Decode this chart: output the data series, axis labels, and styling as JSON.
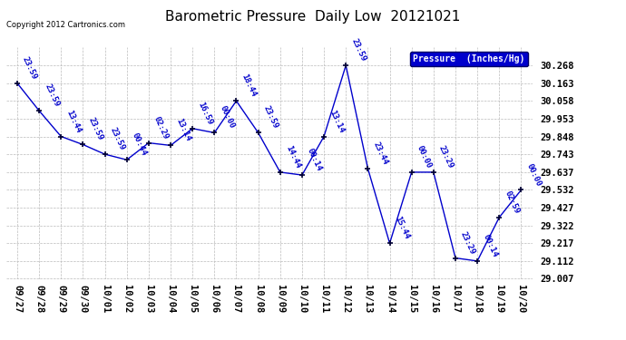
{
  "title": "Barometric Pressure  Daily Low  20121021",
  "copyright": "Copyright 2012 Cartronics.com",
  "legend_label": "Pressure  (Inches/Hg)",
  "x_labels": [
    "09/27",
    "09/28",
    "09/29",
    "09/30",
    "10/01",
    "10/02",
    "10/03",
    "10/04",
    "10/05",
    "10/06",
    "10/07",
    "10/08",
    "10/09",
    "10/10",
    "10/11",
    "10/12",
    "10/13",
    "10/14",
    "10/15",
    "10/16",
    "10/17",
    "10/18",
    "10/19",
    "10/20"
  ],
  "y_values": [
    30.163,
    30.0,
    29.848,
    29.8,
    29.743,
    29.71,
    29.81,
    29.795,
    29.895,
    29.87,
    30.058,
    29.87,
    29.637,
    29.62,
    29.848,
    30.268,
    29.66,
    29.217,
    29.637,
    29.637,
    29.13,
    29.112,
    29.37,
    29.532
  ],
  "point_labels": [
    "23:59",
    "23:59",
    "13:44",
    "23:59",
    "23:59",
    "00:44",
    "02:29",
    "13:14",
    "16:59",
    "00:00",
    "18:44",
    "23:59",
    "14:44",
    "00:14",
    "13:14",
    "23:59",
    "23:44",
    "15:44",
    "00:00",
    "23:29",
    "23:29",
    "00:14",
    "02:59",
    "00:00"
  ],
  "ylim_min": 29.007,
  "ylim_max": 30.373,
  "yticks": [
    29.007,
    29.112,
    29.217,
    29.322,
    29.427,
    29.532,
    29.637,
    29.743,
    29.848,
    29.953,
    30.058,
    30.163,
    30.268
  ],
  "line_color": "#0000CC",
  "marker_color": "#000033",
  "bg_color": "#ffffff",
  "grid_color": "#bbbbbb",
  "title_fontsize": 11,
  "label_fontsize": 6.5,
  "tick_fontsize": 7.5,
  "legend_bg": "#0000CC",
  "legend_text_color": "#ffffff"
}
